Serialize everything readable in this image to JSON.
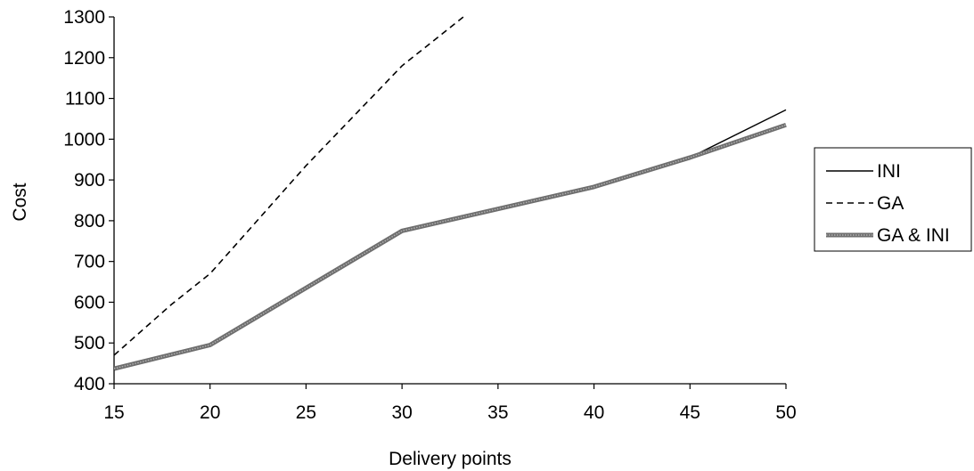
{
  "chart_data": {
    "type": "line",
    "title": "",
    "xlabel": "Delivery points",
    "ylabel": "Cost",
    "xlim": [
      15,
      50
    ],
    "ylim": [
      400,
      1300
    ],
    "xticks": [
      15,
      20,
      25,
      30,
      35,
      40,
      45,
      50
    ],
    "yticks": [
      400,
      500,
      600,
      700,
      800,
      900,
      1000,
      1100,
      1200,
      1300
    ],
    "grid": false,
    "legend_position": "right",
    "series": [
      {
        "name": "INI",
        "style": "solid-thin",
        "color": "#000000",
        "x": [
          15,
          20,
          30,
          40,
          45,
          50
        ],
        "y": [
          435,
          495,
          775,
          883,
          955,
          1072
        ]
      },
      {
        "name": "GA",
        "style": "dashed",
        "color": "#000000",
        "x": [
          15,
          18,
          20,
          25,
          30,
          33.2
        ],
        "y": [
          470,
          595,
          670,
          935,
          1180,
          1300
        ]
      },
      {
        "name": "GA & INI",
        "style": "thick-gray",
        "color": "#808080",
        "x": [
          15,
          20,
          30,
          40,
          45,
          50
        ],
        "y": [
          437,
          495,
          775,
          883,
          955,
          1035
        ]
      }
    ]
  }
}
